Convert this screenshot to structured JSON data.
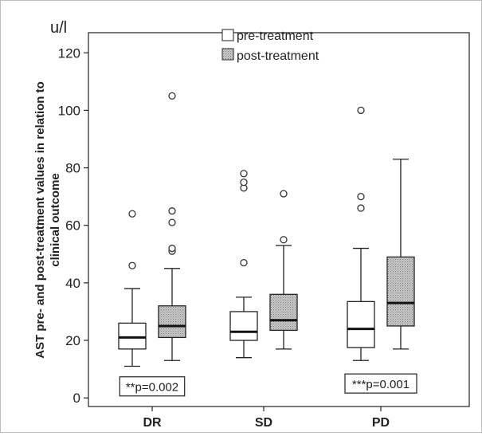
{
  "chart_data": {
    "type": "box",
    "unit_label": "u/l",
    "ylabel_line1": "AST pre- and post-treatment values in relation to",
    "ylabel_line2": "clinical outcome",
    "ylim": [
      -3,
      127
    ],
    "yticks": [
      0,
      20,
      40,
      60,
      80,
      100,
      120
    ],
    "ytick_labels": [
      "0",
      "20",
      "40",
      "60",
      "80",
      "100",
      "120"
    ],
    "categories": [
      "DR",
      "SD",
      "PD"
    ],
    "legend": {
      "placement": "top-center",
      "entries": [
        {
          "label": "pre-treatment",
          "fill": "white"
        },
        {
          "label": "post-treatment",
          "fill": "dotted-gray"
        }
      ]
    },
    "series": [
      {
        "name": "pre-treatment",
        "boxes": [
          {
            "category": "DR",
            "whisker_low": 11,
            "q1": 17,
            "median": 21,
            "q3": 26,
            "whisker_high": 38,
            "outliers": [
              46,
              64
            ]
          },
          {
            "category": "SD",
            "whisker_low": 14,
            "q1": 20,
            "median": 23,
            "q3": 30,
            "whisker_high": 35,
            "outliers": [
              47,
              73,
              75,
              78
            ]
          },
          {
            "category": "PD",
            "whisker_low": 13,
            "q1": 17.5,
            "median": 24,
            "q3": 33.5,
            "whisker_high": 52,
            "outliers": [
              66,
              70,
              100
            ]
          }
        ]
      },
      {
        "name": "post-treatment",
        "boxes": [
          {
            "category": "DR",
            "whisker_low": 13,
            "q1": 21,
            "median": 25,
            "q3": 32,
            "whisker_high": 45,
            "outliers": [
              51,
              52,
              61,
              65,
              105
            ]
          },
          {
            "category": "SD",
            "whisker_low": 17,
            "q1": 23.5,
            "median": 27,
            "q3": 36,
            "whisker_high": 53,
            "outliers": [
              55,
              71
            ]
          },
          {
            "category": "PD",
            "whisker_low": 17,
            "q1": 25,
            "median": 33,
            "q3": 49,
            "whisker_high": 83,
            "outliers": []
          }
        ]
      }
    ],
    "annotations": [
      {
        "category": "DR",
        "text": "**p=0.002",
        "y": 4
      },
      {
        "category": "PD",
        "text": "***p=0.001",
        "y": 5
      }
    ],
    "colors": {
      "pre_fill": "#ffffff",
      "post_fill": "#cfcfcf",
      "post_dot": "#7a7a7a",
      "stroke": "#222222"
    }
  }
}
